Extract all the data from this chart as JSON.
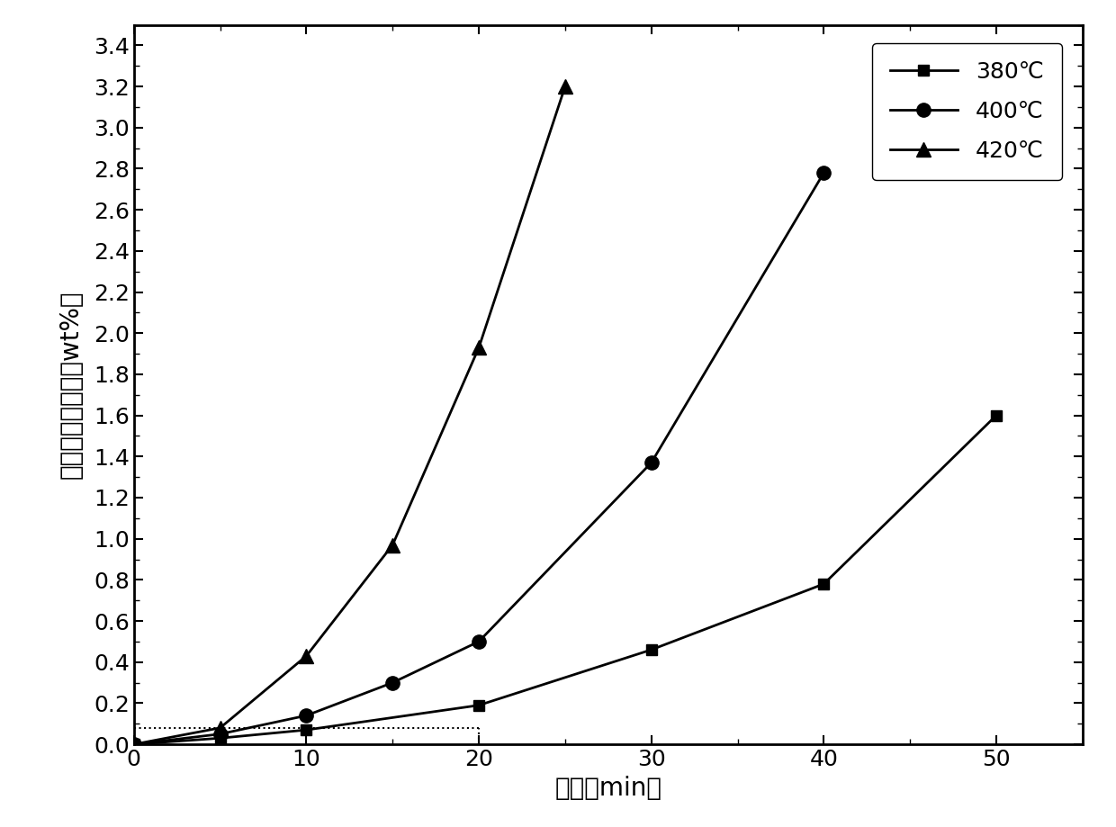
{
  "series": [
    {
      "label": "380℃",
      "x": [
        0,
        5,
        10,
        20,
        30,
        40,
        50
      ],
      "y": [
        0,
        0.03,
        0.07,
        0.19,
        0.46,
        0.78,
        1.6
      ],
      "marker": "s",
      "color": "#000000",
      "markersize": 9
    },
    {
      "label": "400℃",
      "x": [
        0,
        5,
        10,
        15,
        20,
        30,
        40
      ],
      "y": [
        0,
        0.05,
        0.14,
        0.3,
        0.5,
        1.37,
        2.78
      ],
      "marker": "o",
      "color": "#000000",
      "markersize": 11
    },
    {
      "label": "420℃",
      "x": [
        0,
        5,
        10,
        15,
        20,
        25
      ],
      "y": [
        0,
        0.08,
        0.43,
        0.97,
        1.93,
        3.2
      ],
      "marker": "^",
      "color": "#000000",
      "markersize": 11
    }
  ],
  "dashed_line": {
    "x": [
      0,
      20
    ],
    "y": [
      0.08,
      0.08
    ],
    "color": "#000000",
    "linestyle": "dotted",
    "linewidth": 1.5
  },
  "dashed_vline": {
    "x": [
      20,
      20
    ],
    "y": [
      0.0,
      0.08
    ],
    "color": "#000000",
    "linestyle": "dotted",
    "linewidth": 1.5
  },
  "xlabel": "时间（min）",
  "ylabel": "甲苯不溶物增量（wt%）",
  "xlim": [
    0,
    55
  ],
  "ylim": [
    0.0,
    3.5
  ],
  "xticks": [
    0,
    10,
    20,
    30,
    40,
    50
  ],
  "yticks": [
    0.0,
    0.2,
    0.4,
    0.6,
    0.8,
    1.0,
    1.2,
    1.4,
    1.6,
    1.8,
    2.0,
    2.2,
    2.4,
    2.6,
    2.8,
    3.0,
    3.2,
    3.4
  ],
  "linewidth": 2.0,
  "legend_fontsize": 18,
  "axis_label_fontsize": 20,
  "tick_fontsize": 18,
  "background_color": "#ffffff"
}
